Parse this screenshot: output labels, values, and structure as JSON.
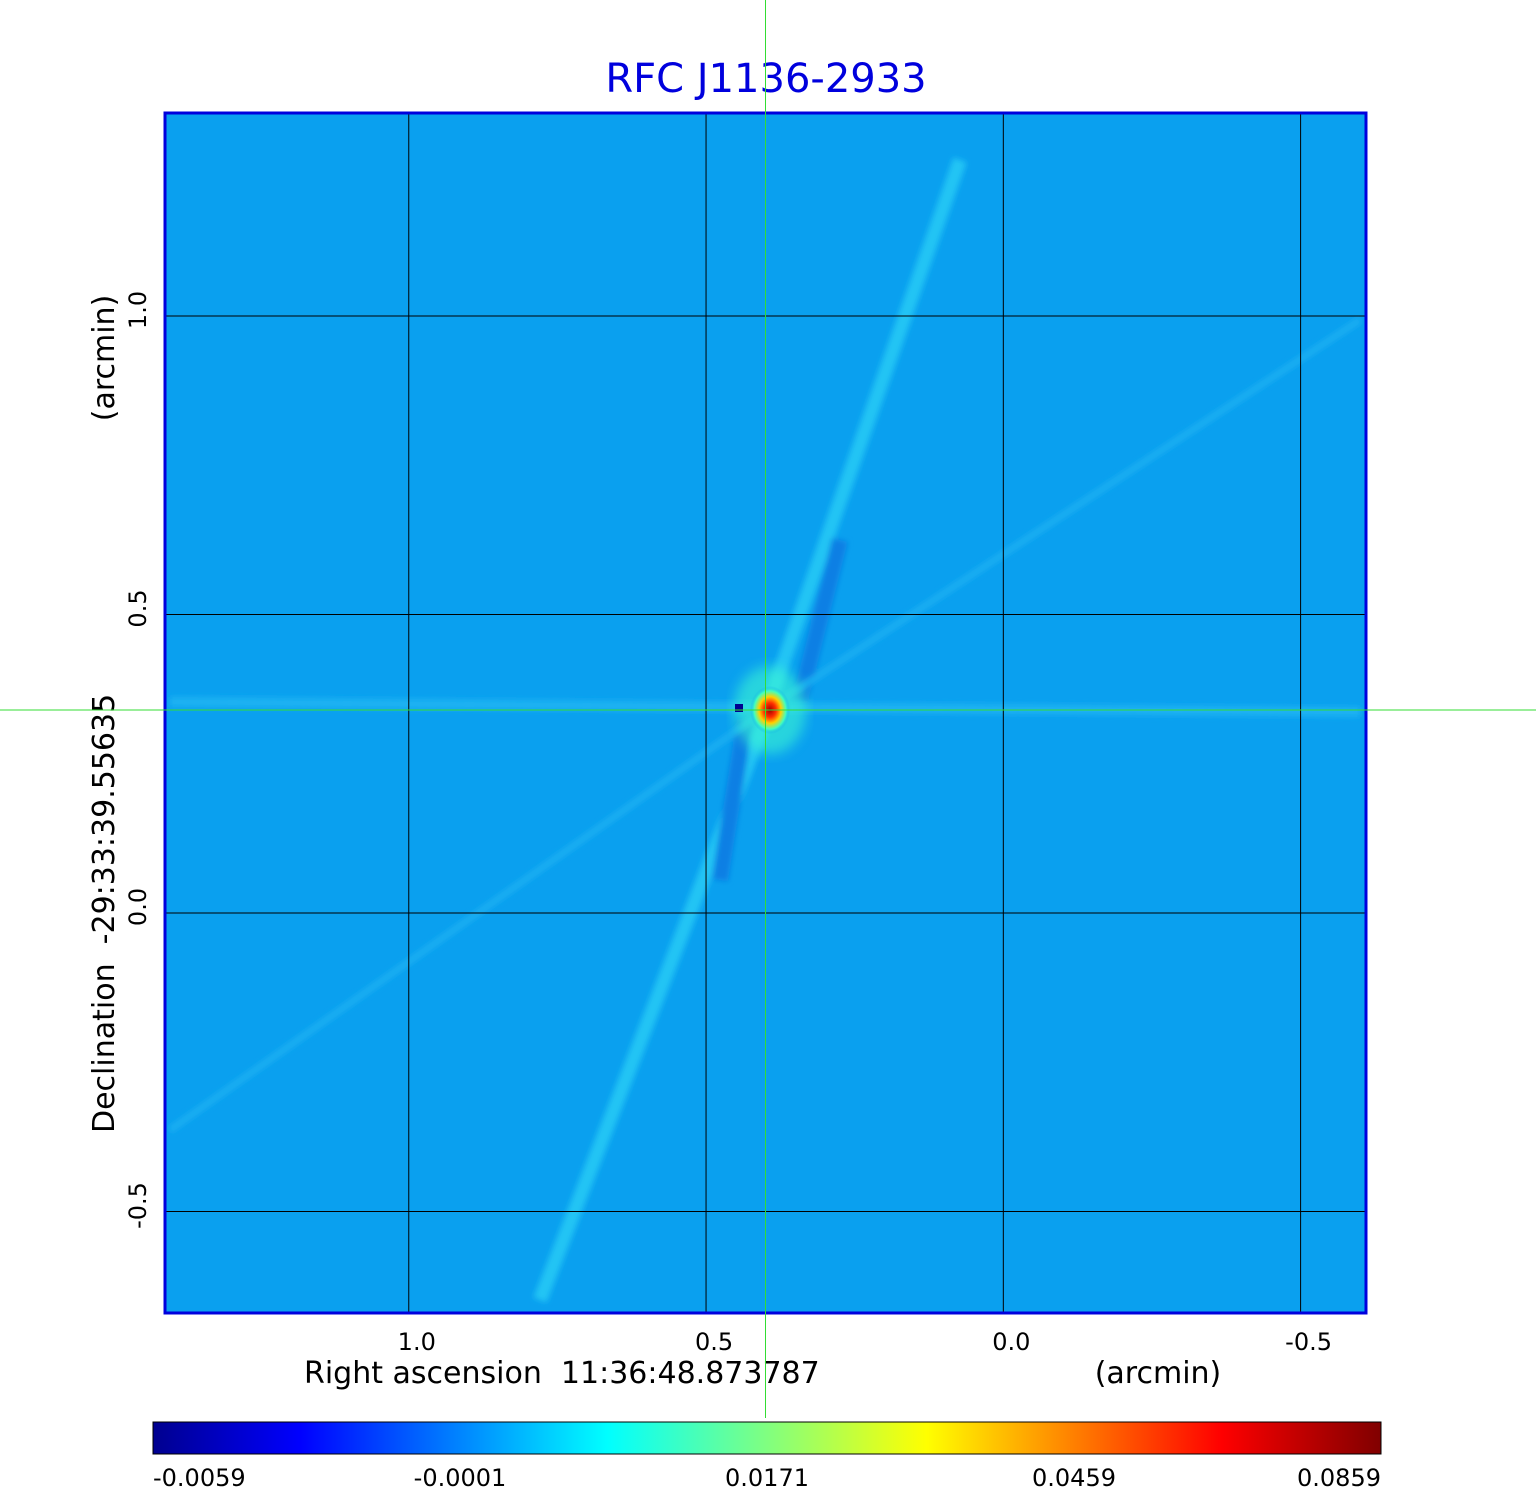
{
  "chart_data": {
    "type": "heatmap",
    "title": "RFC J1136-2933",
    "xlabel": "Right ascension  11:36:48.873787",
    "xunit": "(arcmin)",
    "ylabel": "Declination  -29:33:39.55635",
    "yunit": "(arcmin)",
    "xlim": [
      1.41,
      -0.61
    ],
    "ylim": [
      -0.67,
      1.34
    ],
    "x_ticks": [
      1.0,
      0.5,
      0.0,
      -0.5
    ],
    "x_tick_labels": [
      "1.0",
      "0.5",
      "0.0",
      "-0.5"
    ],
    "y_ticks": [
      1.0,
      0.5,
      0.0,
      -0.5
    ],
    "y_tick_labels": [
      "1.0",
      "0.5",
      "0.0",
      "-0.5"
    ],
    "crosshair": {
      "x": 0.4,
      "y": 0.34
    },
    "source_peak": {
      "x": 0.4,
      "y": 0.34,
      "value": 0.0859
    },
    "colorbar": {
      "tick_labels": [
        "-0.0059",
        "-0.0001",
        "0.0171",
        "0.0459",
        "0.0859"
      ],
      "colormap": "jet"
    },
    "grid": true
  },
  "colors": {
    "title": "#0000dd",
    "frame": "#0000dd",
    "background_map": "#0aa0ef",
    "crosshair": "#33dd33",
    "grid": "#000000"
  }
}
